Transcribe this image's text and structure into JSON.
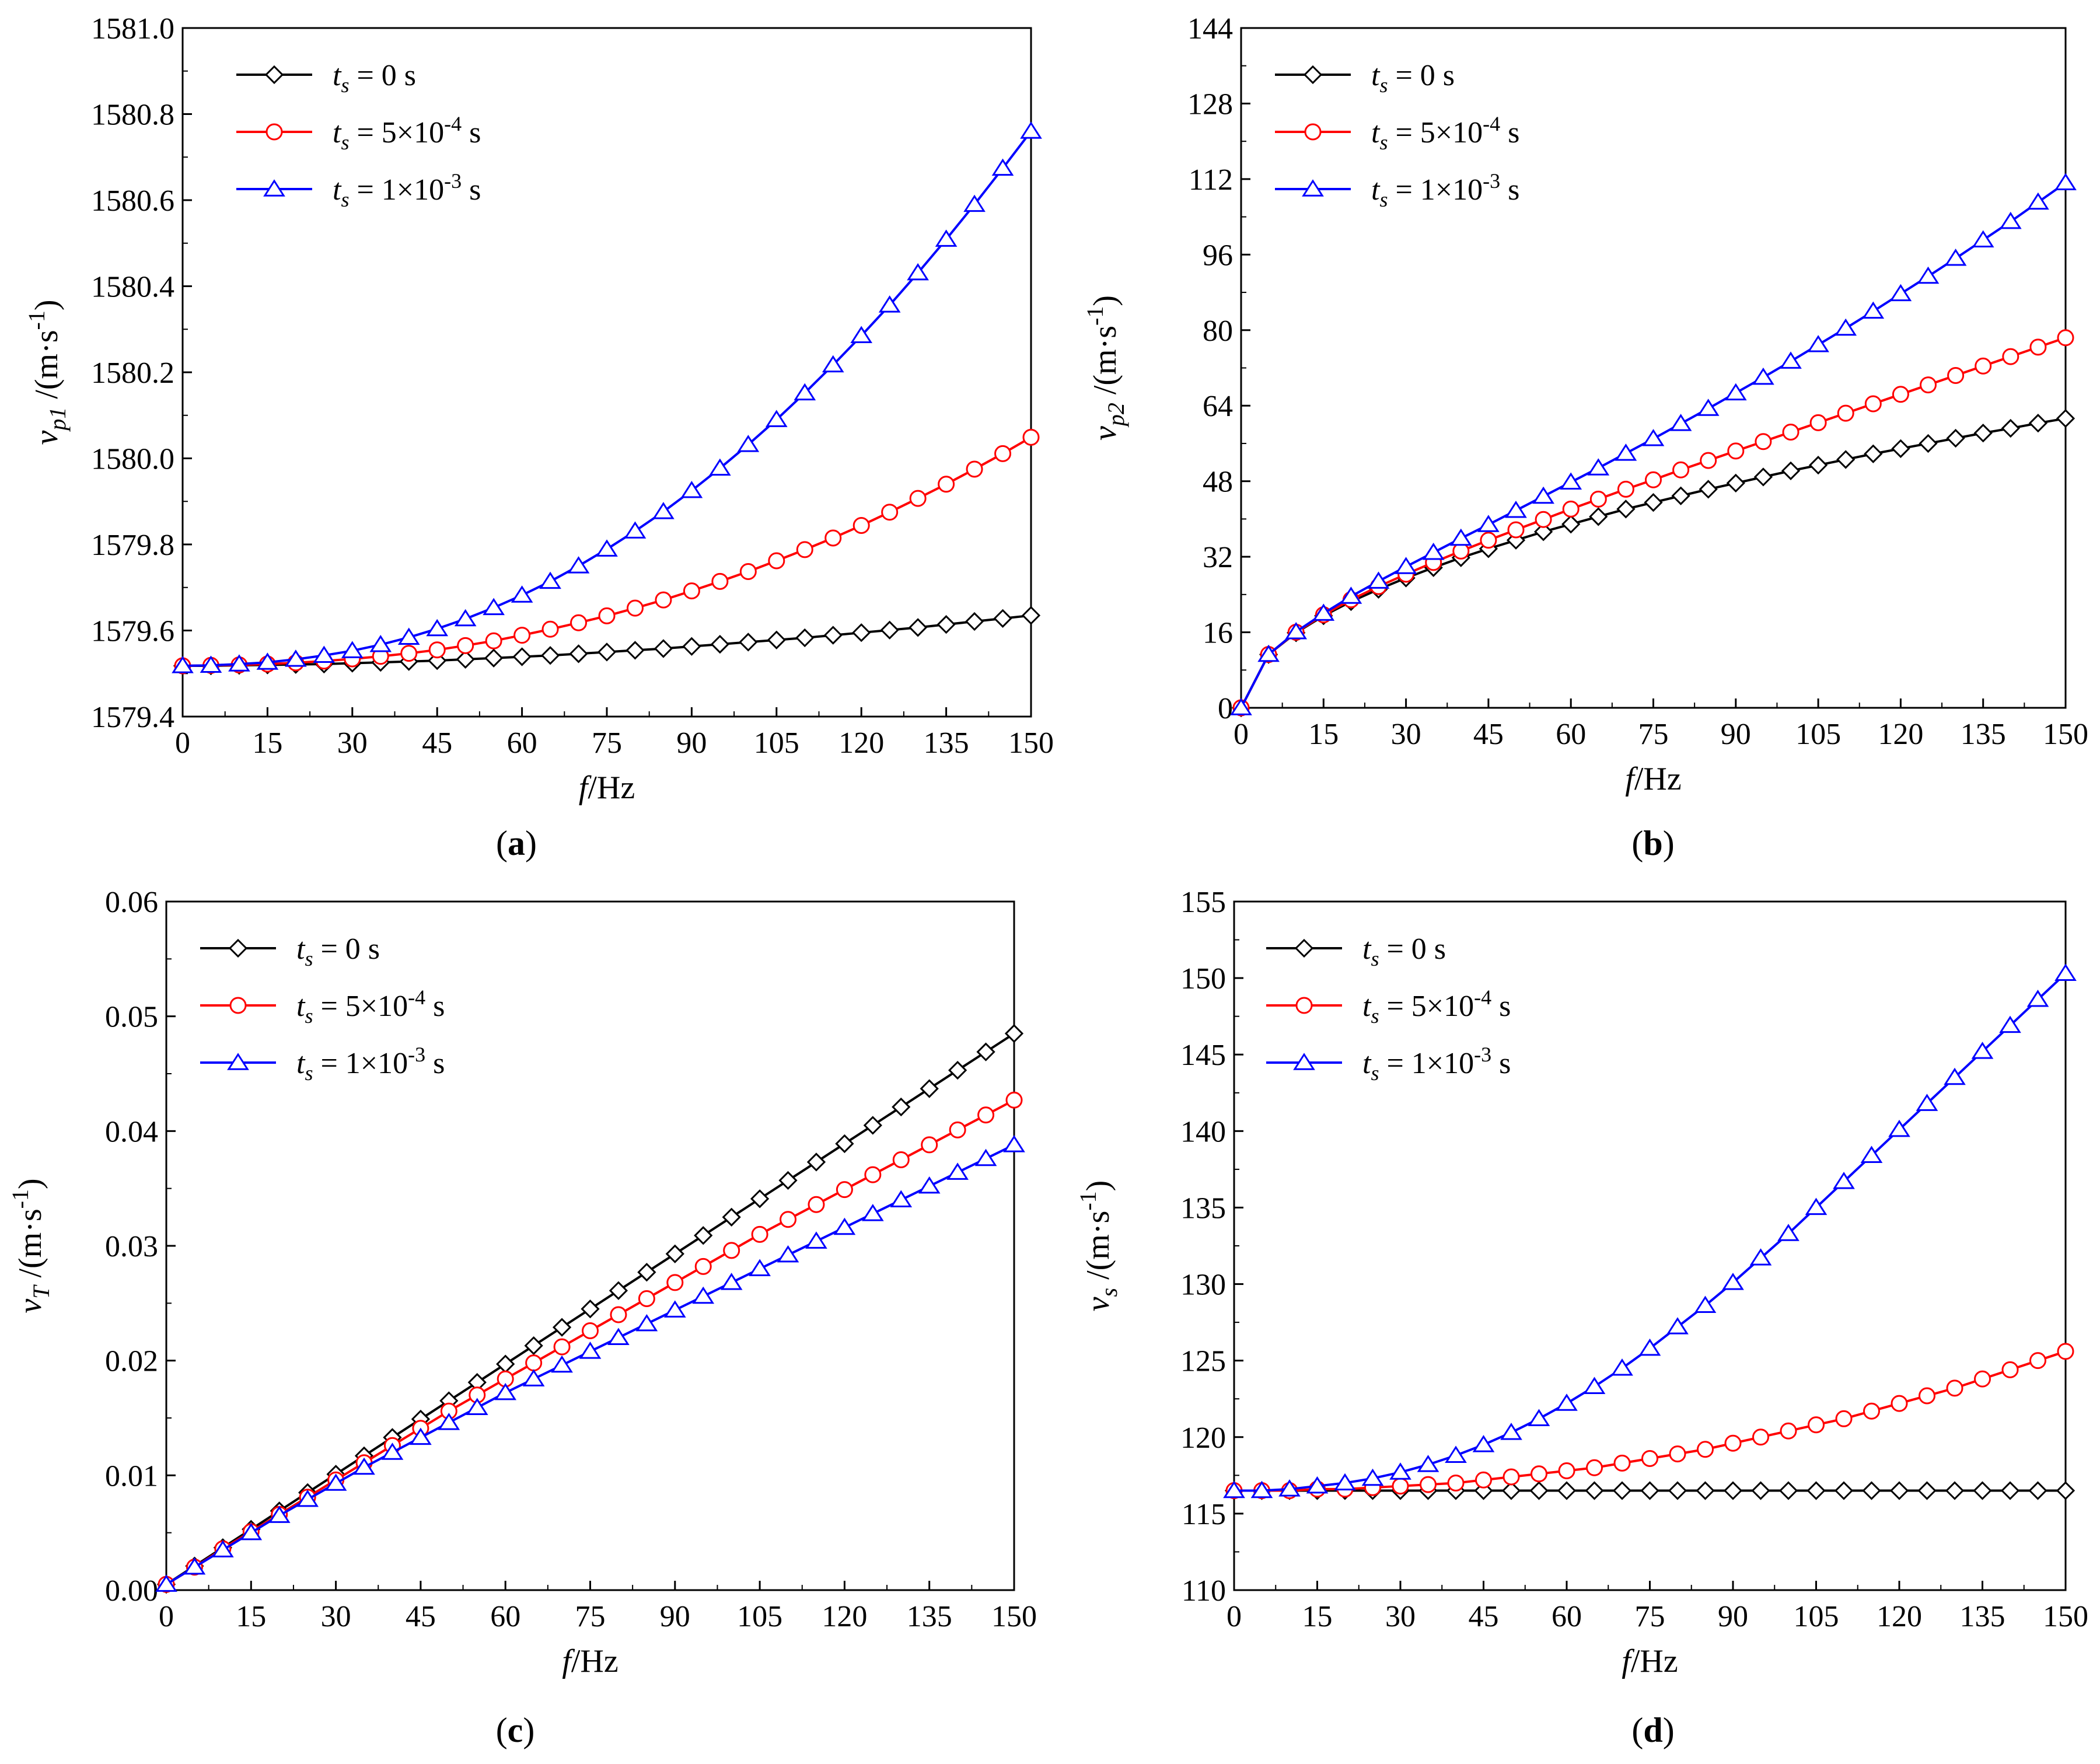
{
  "figure": {
    "series_colors": [
      "#000000",
      "#ff0000",
      "#0000ff"
    ],
    "series_markers": [
      "diamond",
      "circle",
      "triangle"
    ]
  },
  "chart_data": [
    {
      "panel_label": "(a)",
      "type": "line",
      "xlabel": "f/Hz",
      "ylabel": "vp1/(m·s-1)",
      "ylabel_parts": {
        "symbol": "v",
        "sub": "p1",
        "unit": "/(m·s",
        "sup": "-1",
        "close": ")"
      },
      "xlim": [
        0,
        150
      ],
      "ylim": [
        1579.4,
        1581.0
      ],
      "xticks": [
        "0",
        "15",
        "30",
        "45",
        "60",
        "75",
        "90",
        "105",
        "120",
        "135",
        "150"
      ],
      "yticks": [
        "1579.4",
        "1579.6",
        "1579.8",
        "1580.0",
        "1580.2",
        "1580.4",
        "1580.6",
        "1580.8",
        "1581.0"
      ],
      "legend_position": "top-left",
      "x": [
        0,
        5,
        10,
        15,
        20,
        25,
        30,
        35,
        40,
        45,
        50,
        55,
        60,
        65,
        70,
        75,
        80,
        85,
        90,
        95,
        100,
        105,
        110,
        115,
        120,
        125,
        130,
        135,
        140,
        145,
        150
      ],
      "series": [
        {
          "legend": {
            "base": "t",
            "sub": "s",
            "value": " = 0 s"
          },
          "values": [
            1579.518,
            1579.518,
            1579.519,
            1579.52,
            1579.521,
            1579.522,
            1579.524,
            1579.526,
            1579.528,
            1579.53,
            1579.533,
            1579.536,
            1579.539,
            1579.542,
            1579.546,
            1579.55,
            1579.554,
            1579.558,
            1579.563,
            1579.568,
            1579.573,
            1579.578,
            1579.583,
            1579.589,
            1579.595,
            1579.601,
            1579.607,
            1579.614,
            1579.621,
            1579.628,
            1579.635
          ]
        },
        {
          "legend": {
            "base": "t",
            "sub": "s",
            "value": " = 5×10",
            "sup": "-4",
            "tail": " s"
          },
          "values": [
            1579.518,
            1579.519,
            1579.52,
            1579.522,
            1579.525,
            1579.529,
            1579.534,
            1579.54,
            1579.547,
            1579.555,
            1579.565,
            1579.576,
            1579.589,
            1579.603,
            1579.618,
            1579.634,
            1579.652,
            1579.671,
            1579.692,
            1579.714,
            1579.737,
            1579.762,
            1579.788,
            1579.815,
            1579.844,
            1579.875,
            1579.907,
            1579.94,
            1579.975,
            1580.011,
            1580.049
          ]
        },
        {
          "legend": {
            "base": "t",
            "sub": "s",
            "value": " = 1×10",
            "sup": "-3",
            "tail": " s"
          },
          "values": [
            1579.518,
            1579.519,
            1579.522,
            1579.526,
            1579.533,
            1579.542,
            1579.553,
            1579.567,
            1579.584,
            1579.604,
            1579.627,
            1579.653,
            1579.682,
            1579.714,
            1579.75,
            1579.789,
            1579.831,
            1579.876,
            1579.925,
            1579.977,
            1580.032,
            1580.09,
            1580.152,
            1580.217,
            1580.285,
            1580.356,
            1580.431,
            1580.509,
            1580.59,
            1580.674,
            1580.76
          ]
        }
      ]
    },
    {
      "panel_label": "(b)",
      "type": "line",
      "xlabel": "f/Hz",
      "ylabel": "vp2/(m·s-1)",
      "ylabel_parts": {
        "symbol": "v",
        "sub": "p2",
        "unit": "/(m·s",
        "sup": "-1",
        "close": ")"
      },
      "xlim": [
        0,
        150
      ],
      "ylim": [
        0,
        144
      ],
      "xticks": [
        "0",
        "15",
        "30",
        "45",
        "60",
        "75",
        "90",
        "105",
        "120",
        "135",
        "150"
      ],
      "yticks": [
        "0",
        "16",
        "32",
        "48",
        "64",
        "80",
        "96",
        "112",
        "128",
        "144"
      ],
      "legend_position": "top-left",
      "x": [
        0,
        5,
        10,
        15,
        20,
        25,
        30,
        35,
        40,
        45,
        50,
        55,
        60,
        65,
        70,
        75,
        80,
        85,
        90,
        95,
        100,
        105,
        110,
        115,
        120,
        125,
        130,
        135,
        140,
        145,
        150
      ],
      "series": [
        {
          "legend": {
            "base": "t",
            "sub": "s",
            "value": " = 0 s"
          },
          "values": [
            0,
            11.3,
            15.9,
            19.5,
            22.5,
            25.1,
            27.5,
            29.7,
            31.8,
            33.7,
            35.5,
            37.3,
            38.9,
            40.5,
            42.1,
            43.5,
            44.9,
            46.3,
            47.6,
            48.9,
            50.2,
            51.4,
            52.6,
            53.8,
            54.9,
            56.0,
            57.1,
            58.2,
            59.2,
            60.3,
            61.3
          ]
        },
        {
          "legend": {
            "base": "t",
            "sub": "s",
            "value": " = 5×10",
            "sup": "-4",
            "tail": " s"
          },
          "values": [
            0,
            11.3,
            16.0,
            19.7,
            22.9,
            25.7,
            28.3,
            30.8,
            33.2,
            35.5,
            37.7,
            39.9,
            42.1,
            44.2,
            46.3,
            48.3,
            50.4,
            52.4,
            54.4,
            56.4,
            58.4,
            60.4,
            62.4,
            64.4,
            66.4,
            68.4,
            70.4,
            72.4,
            74.4,
            76.4,
            78.4
          ]
        },
        {
          "legend": {
            "base": "t",
            "sub": "s",
            "value": " = 1×10",
            "sup": "-3",
            "tail": " s"
          },
          "values": [
            0,
            11.3,
            16.1,
            20.0,
            23.6,
            26.8,
            29.9,
            32.9,
            35.9,
            38.8,
            41.8,
            44.8,
            47.8,
            50.8,
            53.9,
            57.0,
            60.2,
            63.4,
            66.7,
            70.0,
            73.4,
            76.9,
            80.4,
            84.0,
            87.7,
            91.4,
            95.2,
            99.1,
            103.0,
            107.1,
            111.2
          ]
        }
      ]
    },
    {
      "panel_label": "(c)",
      "type": "line",
      "xlabel": "f/Hz",
      "ylabel": "vT/(m·s-1)",
      "ylabel_parts": {
        "symbol": "v",
        "sub": "T",
        "unit": "/(m·s",
        "sup": "-1",
        "close": ")"
      },
      "xlim": [
        0,
        150
      ],
      "ylim": [
        0,
        0.06
      ],
      "xticks": [
        "0",
        "15",
        "30",
        "45",
        "60",
        "75",
        "90",
        "105",
        "120",
        "135",
        "150"
      ],
      "yticks": [
        "0.00",
        "0.01",
        "0.02",
        "0.03",
        "0.04",
        "0.05",
        "0.06"
      ],
      "legend_position": "top-left",
      "x": [
        0,
        5,
        10,
        15,
        20,
        25,
        30,
        35,
        40,
        45,
        50,
        55,
        60,
        65,
        70,
        75,
        80,
        85,
        90,
        95,
        100,
        105,
        110,
        115,
        120,
        125,
        130,
        135,
        140,
        145,
        150
      ],
      "series": [
        {
          "legend": {
            "base": "t",
            "sub": "s",
            "value": " = 0 s"
          },
          "values": [
            0.0005,
            0.0021,
            0.0037,
            0.0053,
            0.0069,
            0.0085,
            0.0101,
            0.0117,
            0.0133,
            0.0149,
            0.0165,
            0.0181,
            0.0197,
            0.0213,
            0.0229,
            0.0245,
            0.0261,
            0.0277,
            0.0293,
            0.0309,
            0.0325,
            0.0341,
            0.0357,
            0.0373,
            0.0389,
            0.0405,
            0.0421,
            0.0437,
            0.0453,
            0.0469,
            0.0485
          ]
        },
        {
          "legend": {
            "base": "t",
            "sub": "s",
            "value": " = 5×10",
            "sup": "-4",
            "tail": " s"
          },
          "values": [
            0.0005,
            0.002,
            0.0036,
            0.0051,
            0.0066,
            0.0081,
            0.0096,
            0.0111,
            0.0126,
            0.0141,
            0.0156,
            0.017,
            0.0184,
            0.0198,
            0.0212,
            0.0226,
            0.024,
            0.0254,
            0.0268,
            0.0282,
            0.0296,
            0.031,
            0.0323,
            0.0336,
            0.0349,
            0.0362,
            0.0375,
            0.0388,
            0.0401,
            0.0414,
            0.0427
          ]
        },
        {
          "legend": {
            "base": "t",
            "sub": "s",
            "value": " = 1×10",
            "sup": "-3",
            "tail": " s"
          },
          "values": [
            0.0005,
            0.002,
            0.0035,
            0.005,
            0.0065,
            0.0079,
            0.0093,
            0.0107,
            0.012,
            0.0133,
            0.0146,
            0.0159,
            0.0172,
            0.0184,
            0.0196,
            0.0208,
            0.022,
            0.0232,
            0.0244,
            0.0256,
            0.0268,
            0.028,
            0.0292,
            0.0304,
            0.0316,
            0.0328,
            0.034,
            0.0352,
            0.0364,
            0.0376,
            0.0388
          ]
        }
      ]
    },
    {
      "panel_label": "(d)",
      "type": "line",
      "xlabel": "f/Hz",
      "ylabel": "vs/(m·s-1)",
      "ylabel_parts": {
        "symbol": "v",
        "sub": "s",
        "unit": "/(m·s",
        "sup": "-1",
        "close": ")"
      },
      "xlim": [
        0,
        150
      ],
      "ylim": [
        110,
        155
      ],
      "xticks": [
        "0",
        "15",
        "30",
        "45",
        "60",
        "75",
        "90",
        "105",
        "120",
        "135",
        "150"
      ],
      "yticks": [
        "110",
        "115",
        "120",
        "125",
        "130",
        "135",
        "140",
        "145",
        "150",
        "155"
      ],
      "legend_position": "top-left",
      "x": [
        0,
        5,
        10,
        15,
        20,
        25,
        30,
        35,
        40,
        45,
        50,
        55,
        60,
        65,
        70,
        75,
        80,
        85,
        90,
        95,
        100,
        105,
        110,
        115,
        120,
        125,
        130,
        135,
        140,
        145,
        150
      ],
      "series": [
        {
          "legend": {
            "base": "t",
            "sub": "s",
            "value": " = 0 s"
          },
          "values": [
            116.5,
            116.5,
            116.5,
            116.5,
            116.5,
            116.5,
            116.5,
            116.5,
            116.5,
            116.5,
            116.5,
            116.5,
            116.5,
            116.5,
            116.5,
            116.5,
            116.5,
            116.5,
            116.5,
            116.5,
            116.5,
            116.5,
            116.5,
            116.5,
            116.5,
            116.5,
            116.5,
            116.5,
            116.5,
            116.5,
            116.5
          ]
        },
        {
          "legend": {
            "base": "t",
            "sub": "s",
            "value": " = 5×10",
            "sup": "-4",
            "tail": " s"
          },
          "values": [
            116.5,
            116.5,
            116.5,
            116.6,
            116.6,
            116.7,
            116.8,
            116.9,
            117.0,
            117.2,
            117.4,
            117.6,
            117.8,
            118.0,
            118.3,
            118.6,
            118.9,
            119.2,
            119.6,
            120.0,
            120.4,
            120.8,
            121.2,
            121.7,
            122.2,
            122.7,
            123.2,
            123.8,
            124.4,
            125.0,
            125.6
          ]
        },
        {
          "legend": {
            "base": "t",
            "sub": "s",
            "value": " = 1×10",
            "sup": "-3",
            "tail": " s"
          },
          "values": [
            116.5,
            116.5,
            116.6,
            116.8,
            117.0,
            117.3,
            117.7,
            118.2,
            118.8,
            119.5,
            120.3,
            121.2,
            122.2,
            123.3,
            124.5,
            125.8,
            127.2,
            128.6,
            130.1,
            131.7,
            133.3,
            135.0,
            136.7,
            138.4,
            140.1,
            141.8,
            143.5,
            145.2,
            146.9,
            148.6,
            150.3
          ]
        }
      ]
    }
  ]
}
